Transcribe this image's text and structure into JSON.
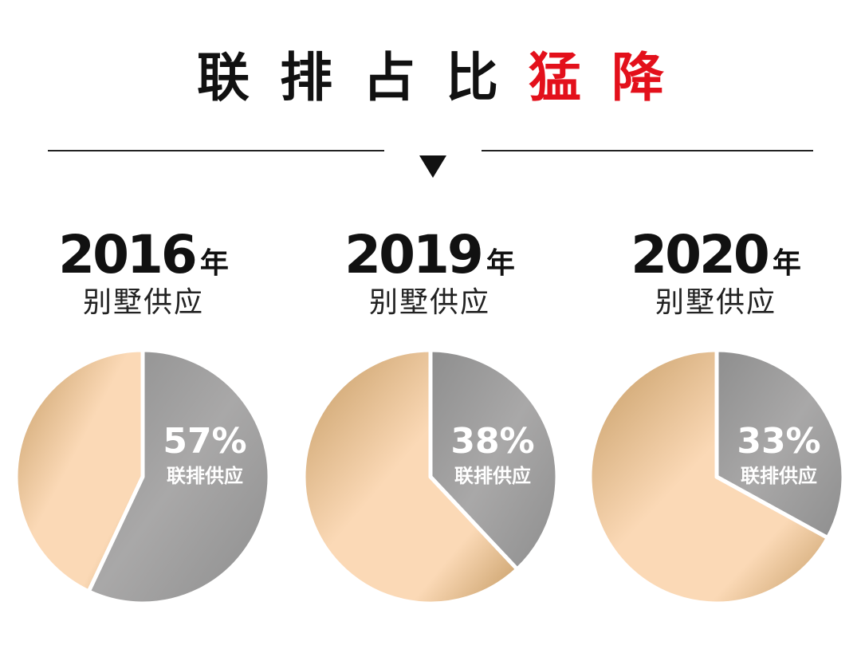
{
  "title": {
    "normal": [
      "联",
      "排",
      "占",
      "比"
    ],
    "highlight": [
      "猛",
      "降"
    ],
    "normal_color": "#111111",
    "highlight_color": "#e3101b"
  },
  "divider_icon": "down-triangle-icon",
  "colors": {
    "gold_dark": "#c49a62",
    "gold_light": "#fbd9b6",
    "gray_light": "#a9a8a8",
    "gray_dark": "#8e8e8e",
    "slice_border": "#ffffff"
  },
  "chart_data": [
    {
      "type": "pie",
      "year": "2016",
      "year_unit": "年",
      "title": "别墅供应",
      "slices": [
        {
          "name": "联排供应",
          "value": 57,
          "label": "57%"
        },
        {
          "name": "",
          "value": 43
        }
      ]
    },
    {
      "type": "pie",
      "year": "2019",
      "year_unit": "年",
      "title": "别墅供应",
      "slices": [
        {
          "name": "联排供应",
          "value": 38,
          "label": "38%"
        },
        {
          "name": "",
          "value": 62
        }
      ]
    },
    {
      "type": "pie",
      "year": "2020",
      "year_unit": "年",
      "title": "别墅供应",
      "slices": [
        {
          "name": "联排供应",
          "value": 33,
          "label": "33%"
        },
        {
          "name": "",
          "value": 67
        }
      ]
    }
  ]
}
